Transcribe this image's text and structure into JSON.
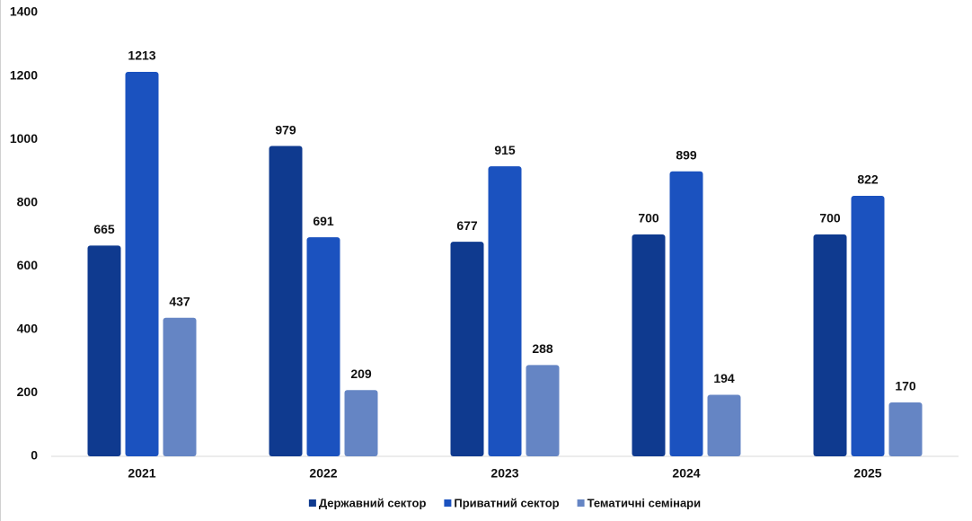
{
  "chart_data": {
    "type": "bar",
    "categories": [
      "2021",
      "2022",
      "2023",
      "2024",
      "2025"
    ],
    "series": [
      {
        "name": "Державний сектор",
        "color": "#0f3a8f",
        "values": [
          665,
          979,
          677,
          700,
          700
        ]
      },
      {
        "name": "Приватний сектор",
        "color": "#1b52bf",
        "values": [
          1213,
          691,
          915,
          899,
          822
        ]
      },
      {
        "name": "Тематичні семінари",
        "color": "#6585c4",
        "values": [
          437,
          209,
          288,
          194,
          170
        ]
      }
    ],
    "ylim": [
      0,
      1400
    ],
    "yticks": [
      0,
      200,
      400,
      600,
      800,
      1000,
      1200,
      1400
    ],
    "grid": false,
    "legend": "bottom"
  }
}
